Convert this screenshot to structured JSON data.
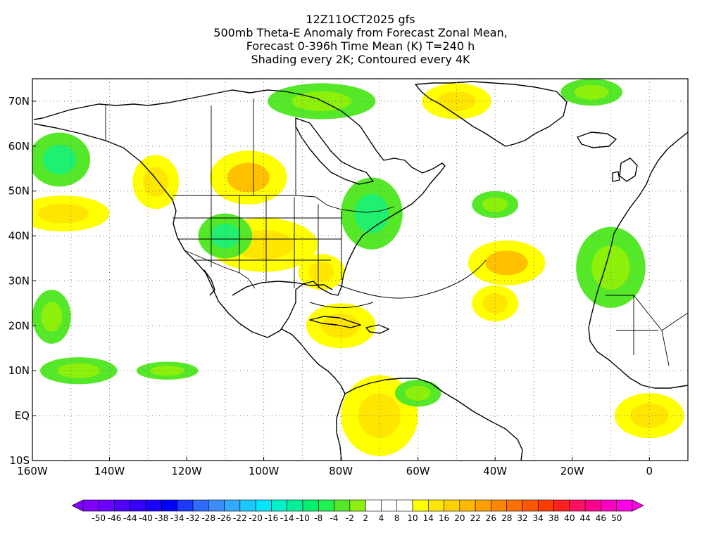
{
  "figure": {
    "title_lines": [
      "12Z11OCT2025 gfs",
      "500mb Theta-E Anomaly from Forecast Zonal Mean,",
      "Forecast 0-396h Time Mean (K) T=240 h",
      "Shading every 2K; Contoured every 4K"
    ],
    "model": "gfs",
    "init_time": "12Z11OCT2025",
    "forecast_hour": "240 h"
  },
  "map_extent": {
    "lon_min": -160,
    "lon_max": 10,
    "lat_min": -10,
    "lat_max": 75
  },
  "axes": {
    "y_ticks": [
      {
        "lat": 70,
        "label": "70N"
      },
      {
        "lat": 60,
        "label": "60N"
      },
      {
        "lat": 50,
        "label": "50N"
      },
      {
        "lat": 40,
        "label": "40N"
      },
      {
        "lat": 30,
        "label": "30N"
      },
      {
        "lat": 20,
        "label": "20N"
      },
      {
        "lat": 10,
        "label": "10N"
      },
      {
        "lat": 0,
        "label": "EQ"
      },
      {
        "lat": -10,
        "label": "10S"
      }
    ],
    "x_ticks": [
      {
        "lon": -160,
        "label": "160W"
      },
      {
        "lon": -140,
        "label": "140W"
      },
      {
        "lon": -120,
        "label": "120W"
      },
      {
        "lon": -100,
        "label": "100W"
      },
      {
        "lon": -80,
        "label": "80W"
      },
      {
        "lon": -60,
        "label": "60W"
      },
      {
        "lon": -40,
        "label": "40W"
      },
      {
        "lon": -20,
        "label": "20W"
      },
      {
        "lon": 0,
        "label": "0"
      }
    ],
    "gridlines": "dotted"
  },
  "colorbar": {
    "labels": [
      "-50",
      "-46",
      "-44",
      "-40",
      "-38",
      "-34",
      "-32",
      "-28",
      "-26",
      "-22",
      "-20",
      "-16",
      "-14",
      "-10",
      "-8",
      "-4",
      "-2",
      "2",
      "4",
      "8",
      "10",
      "14",
      "16",
      "20",
      "22",
      "26",
      "28",
      "32",
      "34",
      "38",
      "40",
      "44",
      "46",
      "50"
    ],
    "colors": [
      "#7f00ff",
      "#6a00ff",
      "#4f00ff",
      "#3500ff",
      "#1a00ff",
      "#0000ff",
      "#1a3aff",
      "#2f6bff",
      "#3d8cff",
      "#32aaff",
      "#1cc8ff",
      "#00e6ff",
      "#00f0c8",
      "#00f09a",
      "#00f070",
      "#20f050",
      "#55e828",
      "#8cf00a",
      "#ffffff",
      "#ffffff",
      "#ffffff",
      "#ffff00",
      "#ffe600",
      "#ffd000",
      "#ffba00",
      "#ffa000",
      "#ff8800",
      "#ff7000",
      "#ff5800",
      "#ff3c00",
      "#ff2020",
      "#ff1060",
      "#ff0090",
      "#ff00c0",
      "#ff00e6"
    ]
  },
  "anomaly_regions": [
    {
      "kind": "positive",
      "level": 4,
      "lon": -152,
      "lat": 45,
      "rx": 12,
      "ry": 4
    },
    {
      "kind": "positive",
      "level": 4,
      "lon": -128,
      "lat": 52,
      "rx": 6,
      "ry": 6
    },
    {
      "kind": "positive",
      "level": 6,
      "lon": -104,
      "lat": 53,
      "rx": 10,
      "ry": 6
    },
    {
      "kind": "positive",
      "level": 4,
      "lon": -100,
      "lat": 38,
      "rx": 14,
      "ry": 6
    },
    {
      "kind": "positive",
      "level": 4,
      "lon": -85,
      "lat": 32,
      "rx": 6,
      "ry": 4
    },
    {
      "kind": "positive",
      "level": 4,
      "lon": -80,
      "lat": 20,
      "rx": 9,
      "ry": 5
    },
    {
      "kind": "positive",
      "level": 4,
      "lon": -70,
      "lat": 0,
      "rx": 10,
      "ry": 9
    },
    {
      "kind": "positive",
      "level": 6,
      "lon": -37,
      "lat": 34,
      "rx": 10,
      "ry": 5
    },
    {
      "kind": "positive",
      "level": 4,
      "lon": -40,
      "lat": 25,
      "rx": 6,
      "ry": 4
    },
    {
      "kind": "positive",
      "level": 4,
      "lon": -50,
      "lat": 70,
      "rx": 9,
      "ry": 4
    },
    {
      "kind": "positive",
      "level": 4,
      "lon": 0,
      "lat": 0,
      "rx": 9,
      "ry": 5
    },
    {
      "kind": "negative",
      "level": 6,
      "lon": -153,
      "lat": 57,
      "rx": 8,
      "ry": 6
    },
    {
      "kind": "negative",
      "level": 6,
      "lon": -110,
      "lat": 40,
      "rx": 7,
      "ry": 5
    },
    {
      "kind": "negative",
      "level": 6,
      "lon": -72,
      "lat": 45,
      "rx": 8,
      "ry": 8
    },
    {
      "kind": "negative",
      "level": 4,
      "lon": -85,
      "lat": 70,
      "rx": 14,
      "ry": 4
    },
    {
      "kind": "negative",
      "level": 4,
      "lon": -40,
      "lat": 47,
      "rx": 6,
      "ry": 3
    },
    {
      "kind": "negative",
      "level": 4,
      "lon": -10,
      "lat": 33,
      "rx": 9,
      "ry": 9
    },
    {
      "kind": "negative",
      "level": 4,
      "lon": -15,
      "lat": 72,
      "rx": 8,
      "ry": 3
    },
    {
      "kind": "negative",
      "level": 4,
      "lon": -148,
      "lat": 10,
      "rx": 10,
      "ry": 3
    },
    {
      "kind": "negative",
      "level": 4,
      "lon": -125,
      "lat": 10,
      "rx": 8,
      "ry": 2
    },
    {
      "kind": "negative",
      "level": 4,
      "lon": -60,
      "lat": 5,
      "rx": 6,
      "ry": 3
    },
    {
      "kind": "negative",
      "level": 4,
      "lon": -155,
      "lat": 22,
      "rx": 5,
      "ry": 6
    }
  ]
}
